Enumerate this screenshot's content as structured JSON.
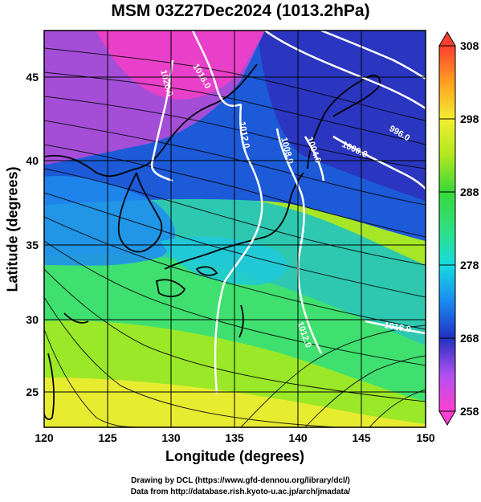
{
  "title": "MSM 03Z27Dec2024 (1013.2hPa)",
  "axes": {
    "xlabel": "Longitude (degrees)",
    "ylabel": "Latitude  (degrees)",
    "xticks": [
      "120",
      "125",
      "130",
      "135",
      "140",
      "145",
      "150"
    ],
    "yticks": [
      "25",
      "30",
      "35",
      "40",
      "45"
    ],
    "lon_range": [
      120,
      150
    ],
    "lat_range": [
      22.4,
      47.6
    ]
  },
  "colorbar": {
    "ticks": [
      "258",
      "268",
      "278",
      "288",
      "298",
      "308"
    ],
    "range": [
      258,
      308
    ],
    "colors": [
      "#ff4fd0",
      "#c060ff",
      "#2a3ec8",
      "#1e88ff",
      "#18e0e0",
      "#30e890",
      "#40e040",
      "#a8ec20",
      "#f4f030",
      "#ffb020",
      "#ff5030"
    ]
  },
  "isobars": [
    {
      "label": "1016.0"
    },
    {
      "label": "1020.0"
    },
    {
      "label": "1012.0"
    },
    {
      "label": "1008.0"
    },
    {
      "label": "1004.0"
    },
    {
      "label": "1000.0"
    },
    {
      "label": "996.0"
    },
    {
      "label": "1012.0"
    },
    {
      "label": "1016.0"
    }
  ],
  "credits": {
    "line1": "Drawing by DCL (https://www.gfd-dennou.org/library/dcl/)",
    "line2": "Data from http://database.rish.kyoto-u.ac.jp/arch/jmadata/"
  }
}
